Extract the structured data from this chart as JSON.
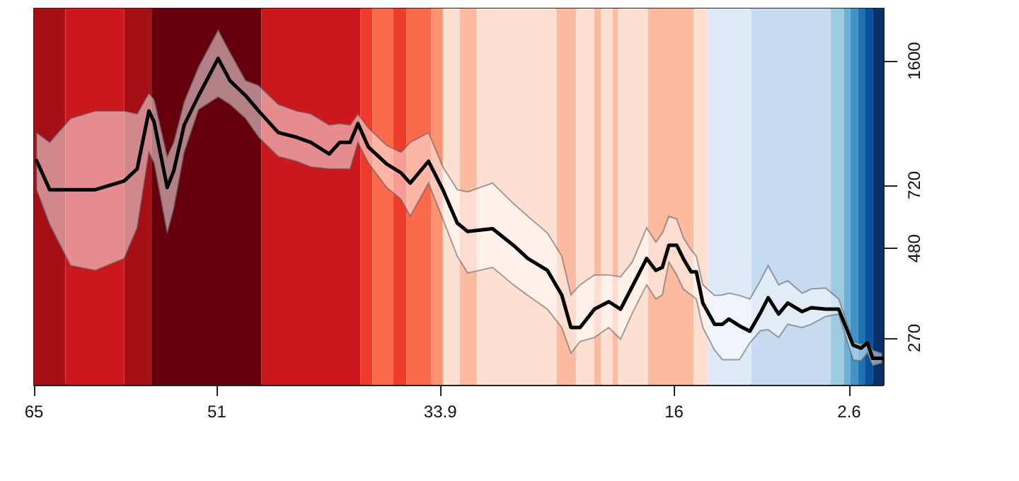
{
  "chart_data": {
    "type": "line",
    "x": [
      64.8,
      63.8,
      62.2,
      60.3,
      58.1,
      57.1,
      56.2,
      55.8,
      54.8,
      54.3,
      53.5,
      52.4,
      50.9,
      50.0,
      48.8,
      47.8,
      46.3,
      44.9,
      43.8,
      42.4,
      41.6,
      40.8,
      40.2,
      39.4,
      38.0,
      36.9,
      36.2,
      34.8,
      33.7,
      32.6,
      31.8,
      29.9,
      28.3,
      27.2,
      25.7,
      24.6,
      23.9,
      23.2,
      22.1,
      21.0,
      20.1,
      19.2,
      18.1,
      17.4,
      16.9,
      16.4,
      15.8,
      15.3,
      14.7,
      14.3,
      13.8,
      12.9,
      12.3,
      11.8,
      11.0,
      10.2,
      9.4,
      8.8,
      8.0,
      7.3,
      6.2,
      5.5,
      4.4,
      3.4,
      2.3,
      1.7,
      1.2,
      0.8,
      0.1
    ],
    "series": [
      {
        "color": "#000000",
        "values": [
          844,
          700,
          700,
          700,
          740,
          800,
          1160,
          1080,
          710,
          790,
          1060,
          1280,
          1625,
          1410,
          1280,
          1160,
          1010,
          980,
          948,
          880,
          948,
          948,
          1070,
          920,
          825,
          780,
          730,
          840,
          700,
          565,
          535,
          545,
          490,
          450,
          417,
          356,
          289,
          289,
          325,
          341,
          325,
          376,
          450,
          417,
          425,
          490,
          490,
          450,
          413,
          413,
          338,
          295,
          295,
          305,
          292,
          282,
          317,
          350,
          315,
          338,
          320,
          328,
          325,
          325,
          258,
          253,
          262,
          237,
          237
        ],
        "lower": [
          700,
          560,
          430,
          417,
          450,
          548,
          890,
          830,
          530,
          620,
          890,
          1170,
          1270,
          1210,
          1105,
          980,
          866,
          840,
          810,
          800,
          800,
          800,
          948,
          830,
          710,
          658,
          590,
          730,
          580,
          457,
          410,
          425,
          380,
          355,
          325,
          289,
          245,
          264,
          271,
          289,
          268,
          317,
          380,
          347,
          356,
          440,
          405,
          370,
          356,
          347,
          289,
          250,
          235,
          235,
          235,
          262,
          283,
          285,
          271,
          295,
          289,
          295,
          310,
          315,
          235,
          233,
          245,
          226,
          230
        ],
        "upper": [
          1010,
          948,
          1105,
          1160,
          1160,
          1138,
          1300,
          1247,
          866,
          948,
          1230,
          1540,
          1950,
          1690,
          1410,
          1366,
          1210,
          1160,
          1138,
          1060,
          1070,
          1060,
          1138,
          1040,
          930,
          890,
          948,
          1010,
          810,
          700,
          690,
          730,
          640,
          590,
          530,
          457,
          356,
          380,
          405,
          405,
          400,
          440,
          548,
          500,
          530,
          590,
          580,
          515,
          475,
          457,
          380,
          355,
          356,
          360,
          355,
          347,
          390,
          430,
          380,
          390,
          360,
          370,
          372,
          347,
          264,
          260,
          264,
          250,
          245
        ]
      }
    ],
    "xlim": [
      65,
      0
    ],
    "xticks": [
      65,
      51,
      33.9,
      16,
      2.6
    ],
    "ylim": [
      200,
      2240
    ],
    "yticks": [
      270,
      480,
      720,
      1600
    ],
    "log": true,
    "grid": false,
    "marker": "none",
    "line_style": "solid",
    "bands": [
      {
        "axis": "x",
        "from": 65,
        "to": 62.6,
        "color": "#a50f15"
      },
      {
        "axis": "x",
        "from": 62.6,
        "to": 58.1,
        "color": "#cb181d"
      },
      {
        "axis": "x",
        "from": 58.1,
        "to": 56.0,
        "color": "#a50f15"
      },
      {
        "axis": "x",
        "from": 56.0,
        "to": 47.6,
        "color": "#67000d"
      },
      {
        "axis": "x",
        "from": 47.6,
        "to": 40.0,
        "color": "#cb181d"
      },
      {
        "axis": "x",
        "from": 40.0,
        "to": 39.1,
        "color": "#ef3b2c"
      },
      {
        "axis": "x",
        "from": 39.1,
        "to": 37.5,
        "color": "#fb6a4a"
      },
      {
        "axis": "x",
        "from": 37.5,
        "to": 36.5,
        "color": "#ef3b2c"
      },
      {
        "axis": "x",
        "from": 36.5,
        "to": 34.6,
        "color": "#fb6a4a"
      },
      {
        "axis": "x",
        "from": 34.6,
        "to": 33.7,
        "color": "#fc9272"
      },
      {
        "axis": "x",
        "from": 33.7,
        "to": 32.4,
        "color": "#fee0d2"
      },
      {
        "axis": "x",
        "from": 32.4,
        "to": 31.1,
        "color": "#fcbba1"
      },
      {
        "axis": "x",
        "from": 31.1,
        "to": 25.0,
        "color": "#fee0d2"
      },
      {
        "axis": "x",
        "from": 25.0,
        "to": 23.5,
        "color": "#fcbba1"
      },
      {
        "axis": "x",
        "from": 23.5,
        "to": 22.1,
        "color": "#fee0d2"
      },
      {
        "axis": "x",
        "from": 22.1,
        "to": 21.6,
        "color": "#fcbba1"
      },
      {
        "axis": "x",
        "from": 21.6,
        "to": 20.7,
        "color": "#fee0d2"
      },
      {
        "axis": "x",
        "from": 20.7,
        "to": 20.3,
        "color": "#fcbba1"
      },
      {
        "axis": "x",
        "from": 20.3,
        "to": 18.0,
        "color": "#fee0d2"
      },
      {
        "axis": "x",
        "from": 18.0,
        "to": 14.5,
        "color": "#fcbba1"
      },
      {
        "axis": "x",
        "from": 14.5,
        "to": 13.4,
        "color": "#fee0d2"
      },
      {
        "axis": "x",
        "from": 13.4,
        "to": 10.1,
        "color": "#deebf7"
      },
      {
        "axis": "x",
        "from": 10.1,
        "to": 4.0,
        "color": "#c6dbef"
      },
      {
        "axis": "x",
        "from": 4.0,
        "to": 3.0,
        "color": "#9ecae1"
      },
      {
        "axis": "x",
        "from": 3.0,
        "to": 2.5,
        "color": "#6baed6"
      },
      {
        "axis": "x",
        "from": 2.5,
        "to": 1.9,
        "color": "#4292c6"
      },
      {
        "axis": "x",
        "from": 1.9,
        "to": 1.4,
        "color": "#2171b5"
      },
      {
        "axis": "x",
        "from": 1.4,
        "to": 0.8,
        "color": "#08519c"
      },
      {
        "axis": "x",
        "from": 0.8,
        "to": 0,
        "color": "#08306b"
      }
    ]
  }
}
